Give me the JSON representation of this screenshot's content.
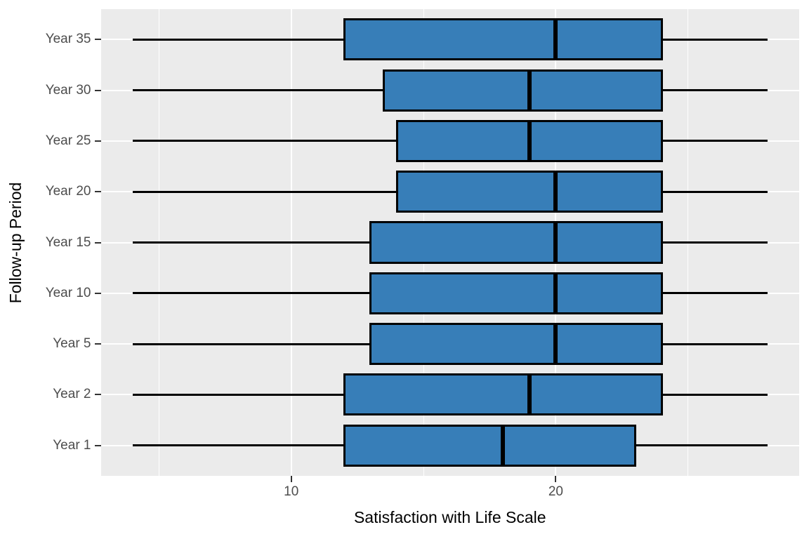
{
  "chart_data": {
    "type": "boxplot",
    "orientation": "horizontal",
    "xlabel": "Satisfaction with Life Scale",
    "ylabel": "Follow-up Period",
    "xlim": [
      2.8,
      29.2
    ],
    "x_major_ticks": [
      10,
      20
    ],
    "x_major_tick_labels": [
      "10",
      "20"
    ],
    "x_minor_gridlines": [
      5,
      15,
      25
    ],
    "grid": "on",
    "legend": "none",
    "rows_top_to_bottom": [
      {
        "label": "Year 35",
        "min": 4,
        "q1": 12,
        "median": 20,
        "q3": 24,
        "max": 28
      },
      {
        "label": "Year 30",
        "min": 4,
        "q1": 13.5,
        "median": 19,
        "q3": 24,
        "max": 28
      },
      {
        "label": "Year 25",
        "min": 4,
        "q1": 14,
        "median": 19,
        "q3": 24,
        "max": 28
      },
      {
        "label": "Year 20",
        "min": 4,
        "q1": 14,
        "median": 20,
        "q3": 24,
        "max": 28
      },
      {
        "label": "Year 15",
        "min": 4,
        "q1": 13,
        "median": 20,
        "q3": 24,
        "max": 28
      },
      {
        "label": "Year 10",
        "min": 4,
        "q1": 13,
        "median": 20,
        "q3": 24,
        "max": 28
      },
      {
        "label": "Year 5",
        "min": 4,
        "q1": 13,
        "median": 20,
        "q3": 24,
        "max": 28
      },
      {
        "label": "Year 2",
        "min": 4,
        "q1": 12,
        "median": 19,
        "q3": 24,
        "max": 28
      },
      {
        "label": "Year 1",
        "min": 4,
        "q1": 12,
        "median": 18,
        "q3": 23,
        "max": 28
      }
    ],
    "colors": {
      "box_fill": "#377EB8",
      "box_border": "#000000",
      "median": "#000000",
      "panel_background": "#EBEBEB",
      "gridline": "#FFFFFF",
      "tick_label": "#4D4D4D",
      "axis_title": "#000000",
      "tick_mark": "#333333"
    }
  }
}
